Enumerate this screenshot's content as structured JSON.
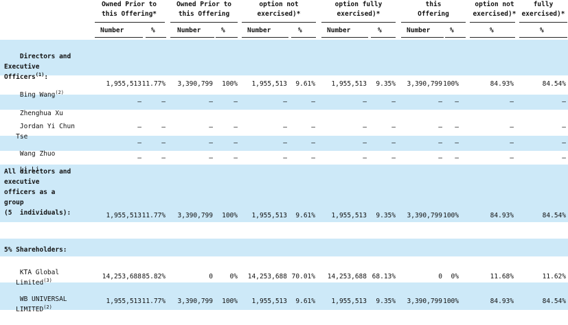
{
  "headers": [
    {
      "lines": [
        "Owned Prior to",
        "this Offering*"
      ]
    },
    {
      "lines": [
        "Owned Prior to",
        "this Offering"
      ]
    },
    {
      "lines": [
        "option not",
        "exercised)*"
      ]
    },
    {
      "lines": [
        "option fully",
        "exercised)*"
      ]
    },
    {
      "lines": [
        "this",
        "Offering"
      ]
    },
    {
      "lines": [
        "option not",
        "exercised)*"
      ]
    },
    {
      "lines": [
        "fully",
        "exercised)*"
      ]
    }
  ],
  "subheaders": [
    "Number",
    "%",
    "Number",
    "%",
    "Number",
    "%",
    "Number",
    "%",
    "Number",
    "%",
    "%",
    "%"
  ],
  "sections": {
    "directors": "Directors and\nExecutive\nOfficers",
    "directors_note": "(1)",
    "directors_colon": ":",
    "all_directors": "All directors and\nexecutive\nofficers as a\ngroup\n(5  individuals):",
    "shareholders": "5% Shareholders:"
  },
  "rows": [
    {
      "name": "Bing Wang",
      "note": "(2)",
      "values": [
        "1,955,513",
        "11.77%",
        "3,390,799",
        "100%",
        "1,955,513",
        "9.61%",
        "1,955,513",
        "9.35%",
        "3,390,799",
        "100%",
        "84.93%",
        "84.54%"
      ]
    },
    {
      "name": "Zhenghua Xu",
      "note": "",
      "values": [
        "—",
        "—",
        "—",
        "—",
        "—",
        "—",
        "—",
        "—",
        "—",
        "—",
        "—",
        "—"
      ]
    },
    {
      "name": "Jordan Yi Chun\n   Tse",
      "note": "",
      "values": [
        "—",
        "—",
        "—",
        "—",
        "—",
        "—",
        "—",
        "—",
        "—",
        "—",
        "—",
        "—"
      ]
    },
    {
      "name": "Wang Zhuo",
      "note": "",
      "values": [
        "—",
        "—",
        "—",
        "—",
        "—",
        "—",
        "—",
        "—",
        "—",
        "—",
        "—",
        "—"
      ]
    },
    {
      "name": "Li Li",
      "note": "",
      "values": [
        "—",
        "—",
        "—",
        "—",
        "—",
        "—",
        "—",
        "—",
        "—",
        "—",
        "—",
        "—"
      ]
    },
    {
      "name": "",
      "note": "",
      "values": [
        "1,955,513",
        "11.77%",
        "3,390,799",
        "100%",
        "1,955,513",
        "9.61%",
        "1,955,513",
        "9.35%",
        "3,390,799",
        "100%",
        "84.93%",
        "84.54%"
      ]
    },
    {
      "name": "KTA Global\n   Limited",
      "note": "(3)",
      "values": [
        "14,253,688",
        "85.82%",
        "0",
        "0%",
        "14,253,688",
        "70.01%",
        "14,253,688",
        "68.13%",
        "0",
        "0%",
        "11.68%",
        "11.62%"
      ]
    },
    {
      "name": "WB UNIVERSAL\n   LIMITED",
      "note": "(2)",
      "values": [
        "1,955,513",
        "11.77%",
        "3,390,799",
        "100%",
        "1,955,513",
        "9.61%",
        "1,955,513",
        "9.35%",
        "3,390,799",
        "100%",
        "84.93%",
        "84.54%"
      ]
    }
  ],
  "colors": {
    "band": "#cde9f8",
    "text": "#111111"
  }
}
